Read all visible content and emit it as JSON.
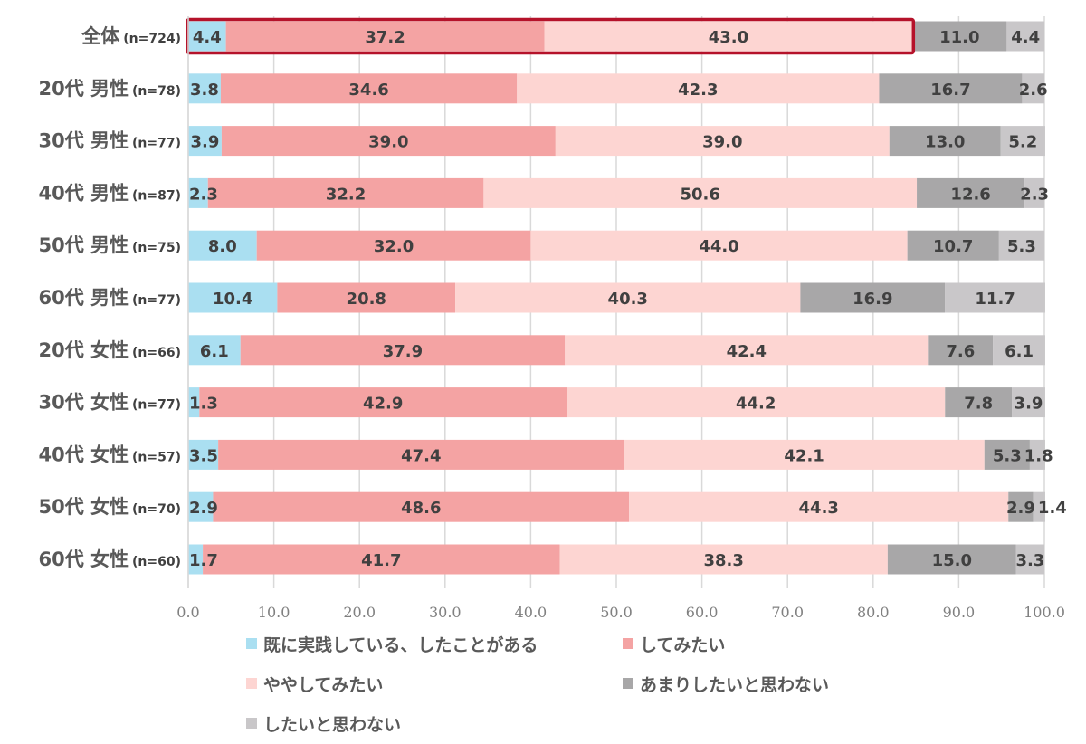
{
  "chart_data": {
    "type": "bar",
    "orientation": "horizontal",
    "stacked": true,
    "categories": [
      {
        "label": "全体",
        "n": "(n=724)"
      },
      {
        "label": "20代 男性",
        "n": "(n=78)"
      },
      {
        "label": "30代 男性",
        "n": "(n=77)"
      },
      {
        "label": "40代 男性",
        "n": "(n=87)"
      },
      {
        "label": "50代 男性",
        "n": "(n=75)"
      },
      {
        "label": "60代 男性",
        "n": "(n=77)"
      },
      {
        "label": "20代 女性",
        "n": "(n=66)"
      },
      {
        "label": "30代 女性",
        "n": "(n=77)"
      },
      {
        "label": "40代 女性",
        "n": "(n=57)"
      },
      {
        "label": "50代 女性",
        "n": "(n=70)"
      },
      {
        "label": "60代 女性",
        "n": "(n=60)"
      }
    ],
    "series": [
      {
        "name": "既に実践している、したことがある",
        "color": "#aadff1",
        "values": [
          4.4,
          3.8,
          3.9,
          2.3,
          8.0,
          10.4,
          6.1,
          1.3,
          3.5,
          2.9,
          1.7
        ]
      },
      {
        "name": "してみたい",
        "color": "#f4a3a3",
        "values": [
          37.2,
          34.6,
          39.0,
          32.2,
          32.0,
          20.8,
          37.9,
          42.9,
          47.4,
          48.6,
          41.7
        ]
      },
      {
        "name": "ややしてみたい",
        "color": "#fdd5d2",
        "values": [
          43.0,
          42.3,
          39.0,
          50.6,
          44.0,
          40.3,
          42.4,
          44.2,
          42.1,
          44.3,
          38.3
        ]
      },
      {
        "name": "あまりしたいと思わない",
        "color": "#a8a7a8",
        "values": [
          11.0,
          16.7,
          13.0,
          12.6,
          10.7,
          16.9,
          7.6,
          7.8,
          5.3,
          2.9,
          15.0
        ]
      },
      {
        "name": "したいと思わない",
        "color": "#c9c7c9",
        "values": [
          4.4,
          2.6,
          5.2,
          2.3,
          5.3,
          11.7,
          6.1,
          3.9,
          1.8,
          1.4,
          3.3
        ]
      }
    ],
    "xlim": [
      0,
      100
    ],
    "xticks": [
      "0.0",
      "10.0",
      "20.0",
      "30.0",
      "40.0",
      "50.0",
      "60.0",
      "70.0",
      "80.0",
      "90.0",
      "100.0"
    ],
    "grid": true,
    "legend_position": "bottom",
    "highlight": {
      "category_index": 0,
      "series_indices": [
        0,
        1,
        2
      ],
      "color": "#b5122a"
    },
    "title": "",
    "xlabel": "",
    "ylabel": ""
  }
}
